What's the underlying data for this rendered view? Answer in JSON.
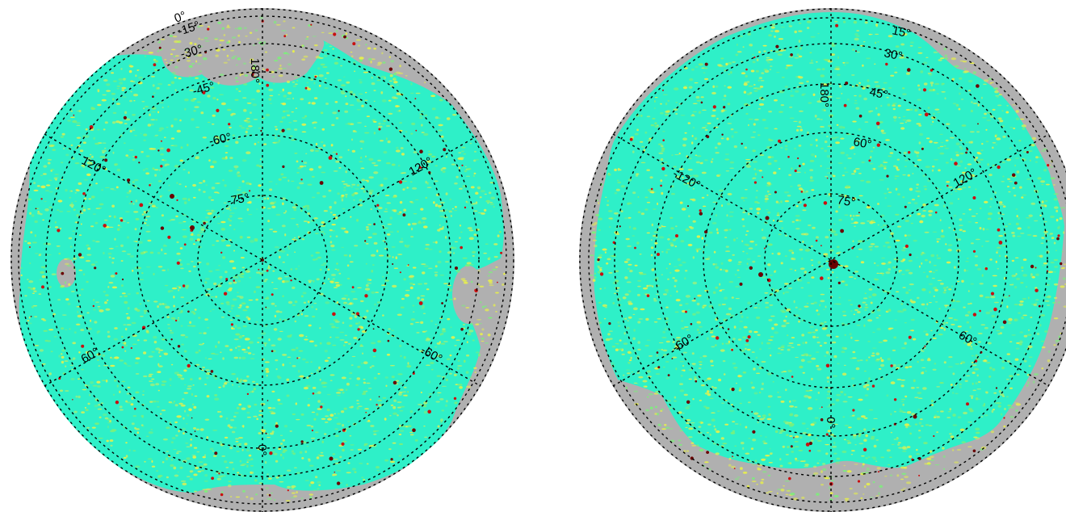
{
  "colors": {
    "background": "#ffffff",
    "masked": "#b0b0b0",
    "field": "#2ef0c8",
    "speckle_yellow": "#e8f04a",
    "speckle_green": "#7cf07a",
    "source_red": "#c81010",
    "source_dark": "#6a0000",
    "graticule": "#000000"
  },
  "maps": [
    {
      "hemisphere": "south",
      "lat_labels": [
        "0°",
        "-15°",
        "-30°",
        "-45°",
        "-60°",
        "-75°"
      ],
      "lon_labels": [
        "180°",
        "120°",
        "120°",
        "60°",
        "-60°",
        "0°"
      ]
    },
    {
      "hemisphere": "north",
      "lat_labels": [
        "15°",
        "30°",
        "45°",
        "60°",
        "75°"
      ],
      "lon_labels": [
        "180°",
        "-120°",
        "120°",
        "-60°",
        "60°",
        "0°"
      ]
    }
  ]
}
